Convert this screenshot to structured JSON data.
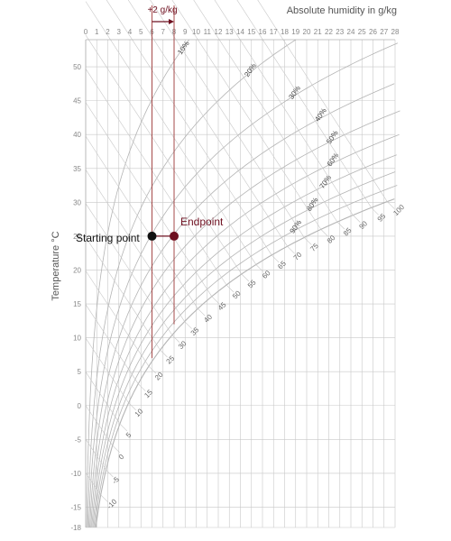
{
  "chart_data": {
    "type": "psychrometric-chart",
    "title": "Absolute humidity in g/kg",
    "ylabel": "Temperature  °C",
    "x_axis": {
      "min": 0,
      "max": 28,
      "ticks": [
        0,
        1,
        2,
        3,
        4,
        5,
        6,
        7,
        8,
        9,
        10,
        11,
        12,
        13,
        14,
        15,
        16,
        17,
        18,
        19,
        20,
        21,
        22,
        23,
        24,
        25,
        26,
        27,
        28
      ]
    },
    "y_axis": {
      "min": -18,
      "max": 54,
      "ticks": [
        -18,
        -15,
        -10,
        -5,
        0,
        5,
        10,
        15,
        20,
        25,
        30,
        35,
        40,
        45,
        50
      ]
    },
    "relative_humidity_labels": [
      "10%",
      "20%",
      "30%",
      "40%",
      "50%",
      "60%",
      "70%",
      "80%",
      "90%"
    ],
    "enthalpy_labels": [
      "-10",
      "-5",
      "0",
      "5",
      "10",
      "15",
      "20",
      "25",
      "30",
      "35",
      "40",
      "45",
      "50",
      "55",
      "60",
      "65",
      "70",
      "75",
      "80",
      "85",
      "90",
      "95",
      "100"
    ],
    "process": {
      "delta_label": "+2 g/kg",
      "start": {
        "label": "Starting point",
        "x": 6,
        "y": 25
      },
      "end": {
        "label": "Endpoint",
        "x": 8,
        "y": 25
      },
      "guide_x": [
        6,
        8
      ]
    },
    "grid": true,
    "colors": {
      "grid": "#c8c8c8",
      "curve": "#b4b4b4",
      "guide": "#a03a3a",
      "start_point": "#111111",
      "end_point": "#6e1020",
      "end_label": "#6e1020"
    }
  }
}
